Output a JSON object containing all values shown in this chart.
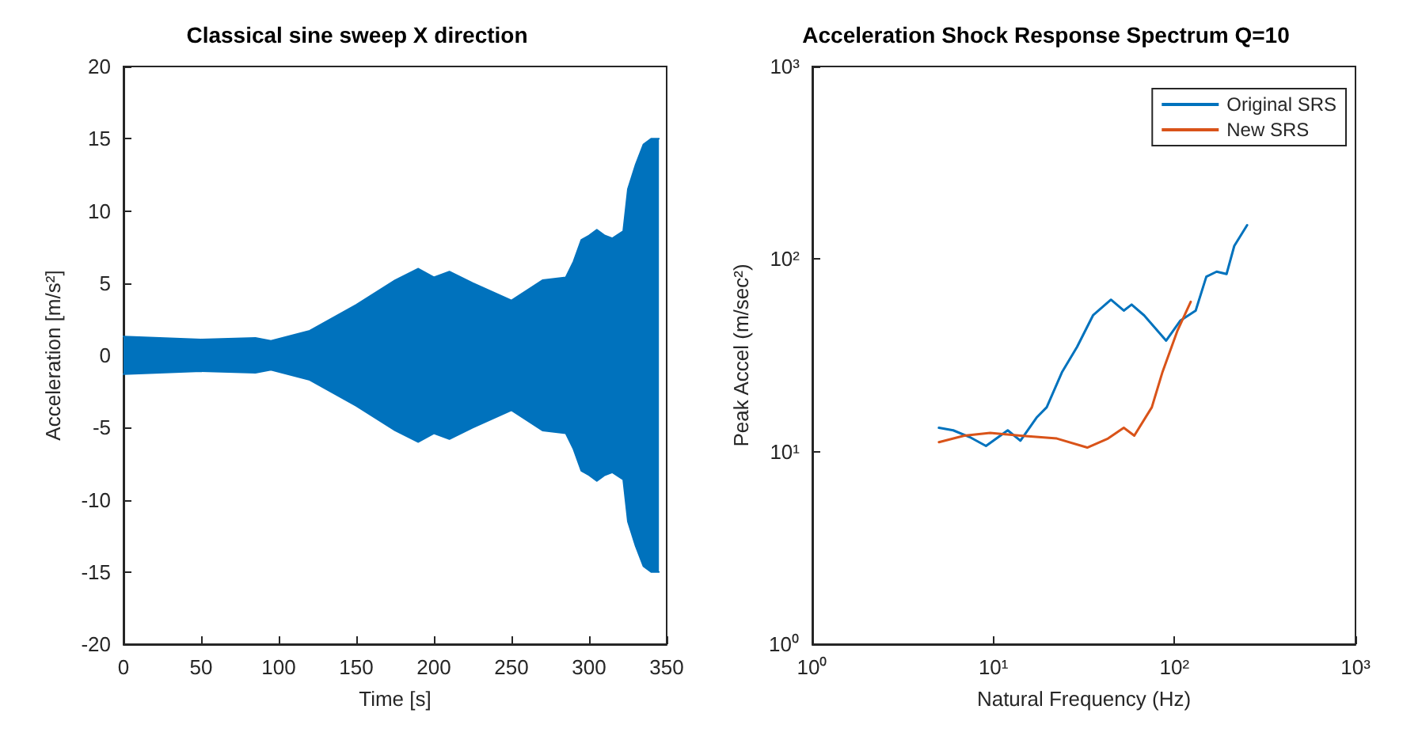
{
  "chart_data": [
    {
      "type": "area",
      "title": "Classical sine sweep X direction",
      "xlabel": "Time [s]",
      "ylabel": "Acceleration [m/s²]",
      "x": [
        0,
        50,
        85,
        95,
        120,
        150,
        175,
        190,
        200,
        210,
        225,
        250,
        270,
        285,
        290,
        295,
        300,
        305,
        310,
        315,
        322,
        325,
        330,
        335,
        340,
        345
      ],
      "series": [
        {
          "color": "#0072bd",
          "values": [
            1.3,
            1.1,
            1.2,
            1.0,
            1.7,
            3.5,
            5.2,
            6.0,
            5.4,
            5.8,
            5.0,
            3.8,
            5.2,
            5.4,
            6.5,
            8,
            8.3,
            8.7,
            8.3,
            8.1,
            8.6,
            11.5,
            13.2,
            14.6,
            15,
            15
          ]
        },
        {
          "color": "#0072bd",
          "values": [
            -1.3,
            -1.1,
            -1.2,
            -1.0,
            -1.7,
            -3.5,
            -5.2,
            -6.0,
            -5.4,
            -5.8,
            -5.0,
            -3.8,
            -5.2,
            -5.4,
            -6.5,
            -8,
            -8.3,
            -8.7,
            -8.3,
            -8.1,
            -8.6,
            -11.5,
            -13.2,
            -14.6,
            -15,
            -15
          ]
        }
      ],
      "xlim": [
        0,
        350
      ],
      "xticks": [
        0,
        50,
        100,
        150,
        200,
        250,
        300,
        350
      ],
      "ylim": [
        -20,
        20
      ],
      "yticks": [
        -20,
        -15,
        -10,
        -5,
        0,
        5,
        10,
        15,
        20
      ],
      "grid": false,
      "legend": false
    },
    {
      "type": "line",
      "title": "Acceleration Shock Response Spectrum Q=10",
      "xlabel": "Natural Frequency (Hz)",
      "ylabel": "Peak Accel (m/sec²)",
      "log": "xy",
      "grid": false,
      "legend": "top right",
      "xlim": [
        1,
        1000
      ],
      "xticks": [
        {
          "value": 1,
          "label": "10⁰"
        },
        {
          "value": 10,
          "label": "10¹"
        },
        {
          "value": 100,
          "label": "10²"
        },
        {
          "value": 1000,
          "label": "10³"
        }
      ],
      "ylim": [
        1,
        1000
      ],
      "yticks": [
        {
          "value": 1,
          "label": "10⁰"
        },
        {
          "value": 10,
          "label": "10¹"
        },
        {
          "value": 100,
          "label": "10²"
        },
        {
          "value": 1000,
          "label": "10³"
        }
      ],
      "series": [
        {
          "name": "Original SRS",
          "color": "#0072bd",
          "x": [
            5.0,
            6.0,
            7.4,
            9.1,
            12.0,
            14.1,
            17.3,
            19.7,
            24,
            29,
            35.5,
            44.6,
            52.5,
            58,
            68,
            90,
            108,
            131,
            150,
            171,
            194,
            214,
            252
          ],
          "values": [
            13.3,
            12.9,
            11.9,
            10.7,
            12.9,
            11.4,
            15.0,
            17,
            26,
            35,
            51,
            61.5,
            54,
            58,
            51,
            37.7,
            48,
            54,
            81,
            86,
            83.6,
            117,
            150
          ]
        },
        {
          "name": "New SRS",
          "color": "#d95319",
          "x": [
            5.0,
            6.9,
            9.6,
            14.1,
            22.4,
            33,
            43,
            52.5,
            60,
            75,
            86,
            104,
            123
          ],
          "values": [
            11.2,
            12.1,
            12.5,
            12.1,
            11.7,
            10.5,
            11.7,
            13.3,
            12.1,
            17,
            26,
            42.6,
            60
          ]
        }
      ]
    }
  ]
}
